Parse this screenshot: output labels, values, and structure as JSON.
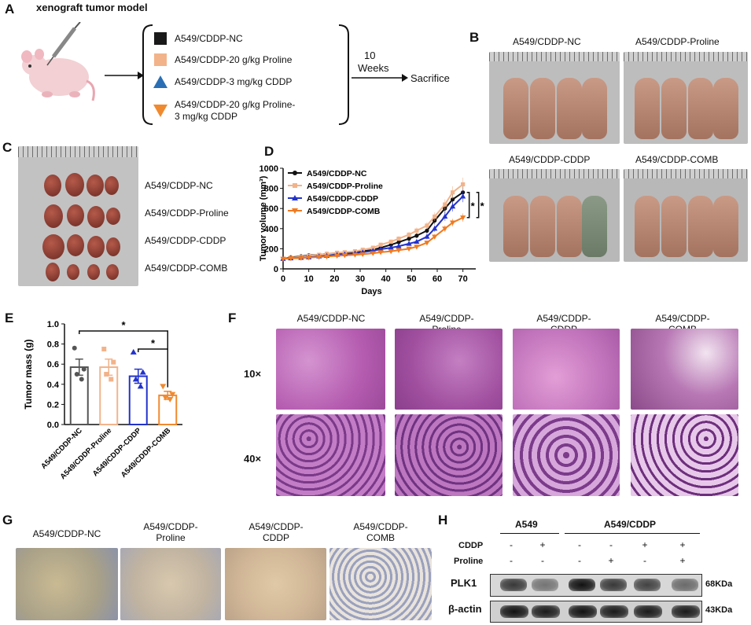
{
  "panels": {
    "a": "A",
    "b": "B",
    "c": "C",
    "d": "D",
    "e": "E",
    "f": "F",
    "g": "G",
    "h": "H"
  },
  "panel_a": {
    "title": "xenograft tumor model",
    "groups": [
      {
        "label": "A549/CDDP-NC",
        "marker": "square",
        "color": "#1a1a1a"
      },
      {
        "label": "A549/CDDP-20 g/kg Proline",
        "marker": "square",
        "color": "#f2b38a"
      },
      {
        "label": "A549/CDDP-3 mg/kg CDDP",
        "marker": "triangle-up",
        "color": "#2a6fb5"
      },
      {
        "label_line1": "A549/CDDP-20 g/kg Proline-",
        "label_line2": "3 mg/kg CDDP",
        "marker": "triangle-down",
        "color": "#f08a30"
      }
    ],
    "duration_value": "10",
    "duration_unit": "Weeks",
    "endpoint": "Sacrifice"
  },
  "panel_b": {
    "labels": [
      "A549/CDDP-NC",
      "A549/CDDP-Proline",
      "A549/CDDP-CDDP",
      "A549/CDDP-COMB"
    ]
  },
  "panel_c": {
    "labels": [
      "A549/CDDP-NC",
      "A549/CDDP-Proline",
      "A549/CDDP-CDDP",
      "A549/CDDP-COMB"
    ]
  },
  "panel_f": {
    "columns": [
      {
        "l1": "A549/CDDP-NC",
        "l2": ""
      },
      {
        "l1": "A549/CDDP-",
        "l2": "Proline"
      },
      {
        "l1": "A549/CDDP-",
        "l2": "CDDP"
      },
      {
        "l1": "A549/CDDP-",
        "l2": "COMB"
      }
    ],
    "rows": [
      "10×",
      "40×"
    ]
  },
  "panel_g": {
    "columns": [
      {
        "l1": "A549/CDDP-NC",
        "l2": ""
      },
      {
        "l1": "A549/CDDP-",
        "l2": "Proline"
      },
      {
        "l1": "A549/CDDP-",
        "l2": "CDDP"
      },
      {
        "l1": "A549/CDDP-",
        "l2": "COMB"
      }
    ]
  },
  "panel_h": {
    "group1": "A549",
    "group2": "A549/CDDP",
    "row_cddp": "CDDP",
    "row_proline": "Proline",
    "cddp_signs": [
      "-",
      "+",
      "-",
      "-",
      "+",
      "+"
    ],
    "proline_signs": [
      "-",
      "-",
      "-",
      "+",
      "-",
      "+"
    ],
    "blot1": "PLK1",
    "blot2": "β-actin",
    "size1": "68KDa",
    "size2": "43KDa",
    "plk1_intensity": [
      0.8,
      0.5,
      1.0,
      0.8,
      0.75,
      0.55
    ],
    "actin_intensity": [
      1.0,
      0.95,
      1.0,
      0.95,
      0.95,
      0.95
    ]
  },
  "chart_data": [
    {
      "type": "line",
      "panel": "D",
      "xlabel": "Days",
      "ylabel": "Tumor volume (mm³)",
      "xlim": [
        0,
        75
      ],
      "ylim": [
        0,
        1000
      ],
      "xticks": [
        0,
        10,
        20,
        30,
        40,
        50,
        60,
        70
      ],
      "yticks": [
        0,
        200,
        400,
        600,
        800,
        1000
      ],
      "legend_position": "top-left",
      "significance": [
        "*",
        "*"
      ],
      "x": [
        0,
        3,
        7,
        10,
        14,
        17,
        21,
        24,
        28,
        31,
        35,
        38,
        42,
        45,
        49,
        52,
        56,
        59,
        63,
        66,
        70
      ],
      "series": [
        {
          "name": "A549/CDDP-NC",
          "color": "#111111",
          "marker": "circle",
          "values": [
            100,
            115,
            125,
            135,
            140,
            150,
            155,
            160,
            165,
            175,
            190,
            210,
            240,
            265,
            300,
            330,
            380,
            480,
            600,
            690,
            760
          ]
        },
        {
          "name": "A549/CDDP-Proline",
          "color": "#f2b38a",
          "marker": "square",
          "values": [
            100,
            110,
            120,
            130,
            140,
            150,
            160,
            165,
            175,
            190,
            210,
            240,
            270,
            300,
            340,
            380,
            430,
            520,
            640,
            760,
            840
          ]
        },
        {
          "name": "A549/CDDP-CDDP",
          "color": "#2233cc",
          "marker": "triangle",
          "values": [
            100,
            105,
            110,
            115,
            125,
            130,
            140,
            145,
            155,
            165,
            180,
            195,
            210,
            225,
            250,
            270,
            320,
            400,
            520,
            620,
            720
          ]
        },
        {
          "name": "A549/CDDP-COMB",
          "color": "#f07a20",
          "marker": "triangle-down",
          "values": [
            100,
            105,
            108,
            112,
            118,
            122,
            130,
            135,
            140,
            145,
            155,
            165,
            175,
            185,
            200,
            220,
            260,
            320,
            400,
            460,
            510
          ]
        }
      ]
    },
    {
      "type": "bar",
      "panel": "E",
      "ylabel": "Tumor mass (g)",
      "ylim": [
        0,
        1.0
      ],
      "yticks": [
        "0.0",
        "0.2",
        "0.4",
        "0.6",
        "0.8",
        "1.0"
      ],
      "categories": [
        "A549/CDDP-NC",
        "A549/CDDP-Proline",
        "A549/CDDP-CDDP",
        "A549/CDDP-COMB"
      ],
      "values": [
        0.57,
        0.57,
        0.48,
        0.29
      ],
      "errors": [
        0.08,
        0.08,
        0.07,
        0.04
      ],
      "points": [
        [
          0.76,
          0.55,
          0.5,
          0.45
        ],
        [
          0.75,
          0.62,
          0.5,
          0.45
        ],
        [
          0.72,
          0.52,
          0.45,
          0.38
        ],
        [
          0.38,
          0.3,
          0.27,
          0.25
        ]
      ],
      "colors": [
        "#555555",
        "#f2b38a",
        "#2233cc",
        "#f08a30"
      ],
      "markers": [
        "circle",
        "square",
        "triangle",
        "triangle-down"
      ],
      "significance": [
        "*",
        "*"
      ]
    }
  ]
}
